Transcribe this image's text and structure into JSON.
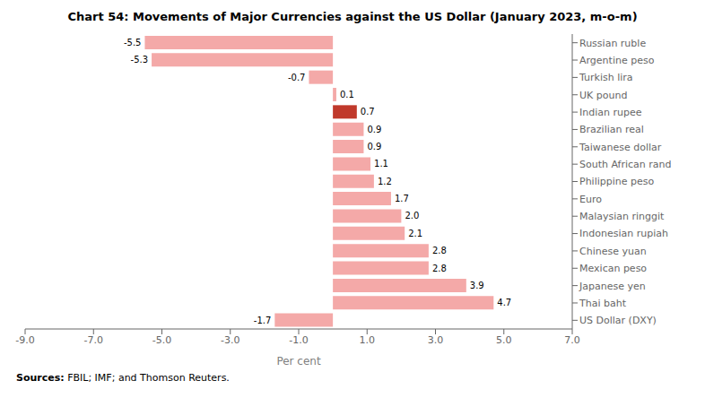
{
  "chart_data": {
    "type": "bar",
    "orientation": "horizontal",
    "title": "Chart 54: Movements of Major Currencies against the US Dollar (January 2023, m-o-m)",
    "categories": [
      "Russian ruble",
      "Argentine peso",
      "Turkish lira",
      "UK pound",
      "Indian rupee",
      "Brazilian real",
      "Taiwanese dollar",
      "South African rand",
      "Philippine peso",
      "Euro",
      "Malaysian ringgit",
      "Indonesian rupiah",
      "Chinese yuan",
      "Mexican peso",
      "Japanese yen",
      "Thai baht",
      "US Dollar (DXY)"
    ],
    "values": [
      -5.5,
      -5.3,
      -0.7,
      0.1,
      0.7,
      0.9,
      0.9,
      1.1,
      1.2,
      1.7,
      2.0,
      2.1,
      2.8,
      2.8,
      3.9,
      4.7,
      -1.7
    ],
    "value_labels": [
      "-5.5",
      "-5.3",
      "-0.7",
      "0.1",
      "0.7",
      "0.9",
      "0.9",
      "1.1",
      "1.2",
      "1.7",
      "2.0",
      "2.1",
      "2.8",
      "2.8",
      "3.9",
      "4.7",
      "-1.7"
    ],
    "data_labels": true,
    "colors": [
      "#f4a9a8",
      "#f4a9a8",
      "#f4a9a8",
      "#f4a9a8",
      "#c0392b",
      "#f4a9a8",
      "#f4a9a8",
      "#f4a9a8",
      "#f4a9a8",
      "#f4a9a8",
      "#f4a9a8",
      "#f4a9a8",
      "#f4a9a8",
      "#f4a9a8",
      "#f4a9a8",
      "#f4a9a8",
      "#f4a9a8"
    ],
    "xlabel": "Per cent",
    "xlim": [
      -9.0,
      7.0
    ],
    "xticks": [
      {
        "value": -9.0,
        "label": "-9.0"
      },
      {
        "value": -7.0,
        "label": "-7.0"
      },
      {
        "value": -5.0,
        "label": "-5.0"
      },
      {
        "value": -3.0,
        "label": "-3.0"
      },
      {
        "value": -1.0,
        "label": "-1.0"
      },
      {
        "value": 1.0,
        "label": "1.0"
      },
      {
        "value": 3.0,
        "label": "3.0"
      },
      {
        "value": 5.0,
        "label": "5.0"
      },
      {
        "value": 7.0,
        "label": "7.0"
      }
    ],
    "grid": false,
    "annotations": [
      "Sources:",
      "FBIL; IMF; and Thomson Reuters."
    ]
  }
}
